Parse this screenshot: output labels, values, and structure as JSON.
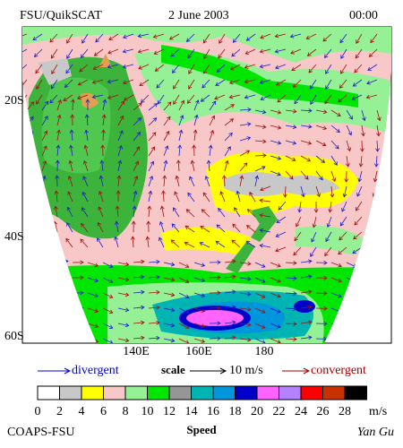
{
  "header": {
    "left": "FSU/QuikSCAT",
    "center": "2 June 2003",
    "right": "00:00"
  },
  "map": {
    "lat_labels": [
      "20S",
      "40S",
      "60S"
    ],
    "lon_labels": [
      "140E",
      "160E",
      "180"
    ]
  },
  "legend": {
    "divergent": "divergent",
    "scale": "scale",
    "scale_value": "10 m/s",
    "convergent": "convergent"
  },
  "colorbar": {
    "labels": [
      0,
      2,
      4,
      6,
      8,
      10,
      12,
      14,
      16,
      18,
      20,
      22,
      24,
      26,
      28
    ],
    "unit": "m/s",
    "title": "Speed",
    "colors": [
      "#ffffff",
      "#c8c8c8",
      "#ffff00",
      "#f8c8c8",
      "#96f096",
      "#00e600",
      "#969696",
      "#00b4b4",
      "#0096dc",
      "#0000c8",
      "#ff64ff",
      "#b482ff",
      "#ff0000",
      "#c83200",
      "#000000"
    ]
  },
  "footer": {
    "left": "COAPS-FSU",
    "right": "Yan Gu"
  }
}
